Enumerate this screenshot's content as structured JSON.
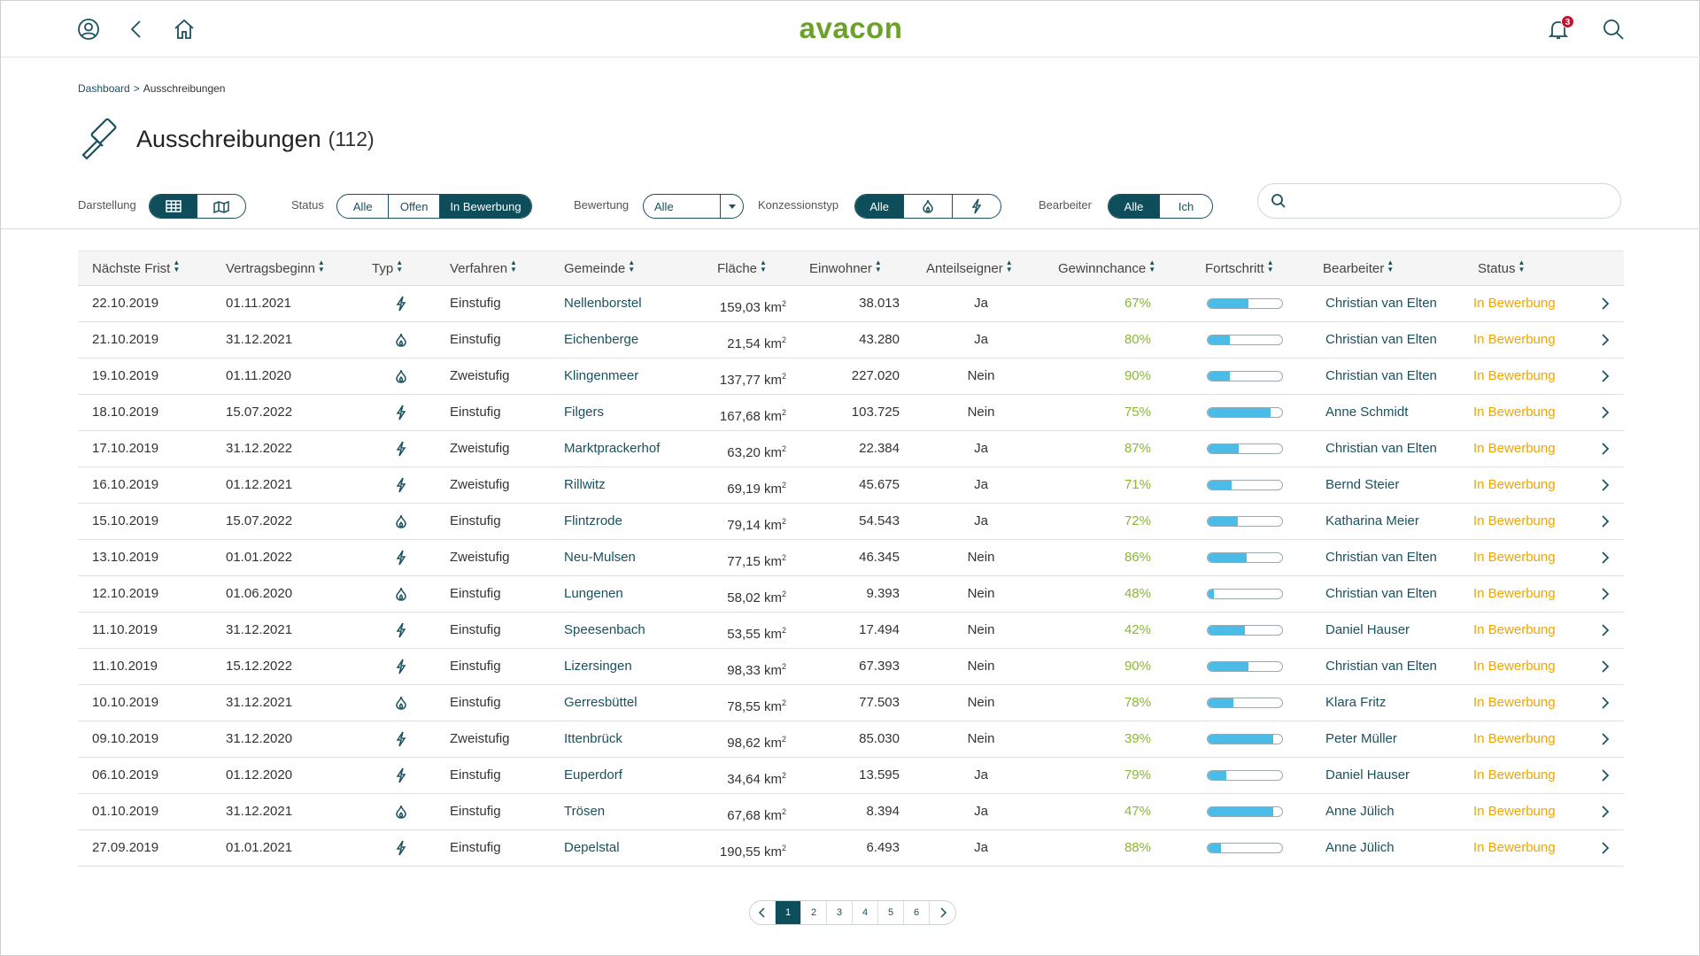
{
  "app": {
    "brand": "avacon",
    "notifications_count": "3"
  },
  "breadcrumb": {
    "parent": "Dashboard",
    "separator": ">",
    "current": "Ausschreibungen"
  },
  "page": {
    "title": "Ausschreibungen",
    "count": "(112)"
  },
  "filters": {
    "darstellung_label": "Darstellung",
    "status_label": "Status",
    "status_options": [
      "Alle",
      "Offen",
      "In Bewerbung"
    ],
    "status_selected": "In Bewerbung",
    "bewertung_label": "Bewertung",
    "bewertung_value": "Alle",
    "konzession_label": "Konzessionstyp",
    "konzession_all": "Alle",
    "bearbeiter_label": "Bearbeiter",
    "bearbeiter_options": [
      "Alle",
      "Ich"
    ],
    "bearbeiter_selected": "Alle",
    "search_placeholder": ""
  },
  "table": {
    "columns": [
      "Nächste Frist",
      "Vertragsbeginn",
      "Typ",
      "Verfahren",
      "Gemeinde",
      "Fläche",
      "Einwohner",
      "Anteilseigner",
      "Gewinnchance",
      "Fortschritt",
      "Bearbeiter",
      "Status"
    ],
    "area_unit": "km",
    "rows": [
      {
        "frist": "22.10.2019",
        "beginn": "01.11.2021",
        "typ": "strom",
        "verfahren": "Einstufig",
        "gemeinde": "Nellenborstel",
        "flaeche": "159,03",
        "einwohner": "38.013",
        "anteil": "Ja",
        "chance": "67%",
        "progress": 0.55,
        "bearbeiter": "Christian van Elten",
        "status": "In Bewerbung"
      },
      {
        "frist": "21.10.2019",
        "beginn": "31.12.2021",
        "typ": "gas",
        "verfahren": "Einstufig",
        "gemeinde": "Eichenberge",
        "flaeche": "21,54",
        "einwohner": "43.280",
        "anteil": "Ja",
        "chance": "80%",
        "progress": 0.3,
        "bearbeiter": "Christian van Elten",
        "status": "In Bewerbung"
      },
      {
        "frist": "19.10.2019",
        "beginn": "01.11.2020",
        "typ": "gas",
        "verfahren": "Zweistufig",
        "gemeinde": "Klingenmeer",
        "flaeche": "137,77",
        "einwohner": "227.020",
        "anteil": "Nein",
        "chance": "90%",
        "progress": 0.3,
        "bearbeiter": "Christian van Elten",
        "status": "In Bewerbung"
      },
      {
        "frist": "18.10.2019",
        "beginn": "15.07.2022",
        "typ": "strom",
        "verfahren": "Einstufig",
        "gemeinde": "Filgers",
        "flaeche": "167,68",
        "einwohner": "103.725",
        "anteil": "Nein",
        "chance": "75%",
        "progress": 0.85,
        "bearbeiter": "Anne Schmidt",
        "status": "In Bewerbung"
      },
      {
        "frist": "17.10.2019",
        "beginn": "31.12.2022",
        "typ": "strom",
        "verfahren": "Zweistufig",
        "gemeinde": "Marktprackerhof",
        "flaeche": "63,20",
        "einwohner": "22.384",
        "anteil": "Ja",
        "chance": "87%",
        "progress": 0.42,
        "bearbeiter": "Christian van Elten",
        "status": "In Bewerbung"
      },
      {
        "frist": "16.10.2019",
        "beginn": "01.12.2021",
        "typ": "strom",
        "verfahren": "Zweistufig",
        "gemeinde": "Rillwitz",
        "flaeche": "69,19",
        "einwohner": "45.675",
        "anteil": "Ja",
        "chance": "71%",
        "progress": 0.32,
        "bearbeiter": "Bernd Steier",
        "status": "In Bewerbung"
      },
      {
        "frist": "15.10.2019",
        "beginn": "15.07.2022",
        "typ": "gas",
        "verfahren": "Einstufig",
        "gemeinde": "Flintzrode",
        "flaeche": "79,14",
        "einwohner": "54.543",
        "anteil": "Ja",
        "chance": "72%",
        "progress": 0.4,
        "bearbeiter": "Katharina Meier",
        "status": "In Bewerbung"
      },
      {
        "frist": "13.10.2019",
        "beginn": "01.01.2022",
        "typ": "strom",
        "verfahren": "Zweistufig",
        "gemeinde": "Neu-Mulsen",
        "flaeche": "77,15",
        "einwohner": "46.345",
        "anteil": "Nein",
        "chance": "86%",
        "progress": 0.52,
        "bearbeiter": "Christian van Elten",
        "status": "In Bewerbung"
      },
      {
        "frist": "12.10.2019",
        "beginn": "01.06.2020",
        "typ": "gas",
        "verfahren": "Einstufig",
        "gemeinde": "Lungenen",
        "flaeche": "58,02",
        "einwohner": "9.393",
        "anteil": "Nein",
        "chance": "48%",
        "progress": 0.08,
        "bearbeiter": "Christian van Elten",
        "status": "In Bewerbung"
      },
      {
        "frist": "11.10.2019",
        "beginn": "31.12.2021",
        "typ": "strom",
        "verfahren": "Einstufig",
        "gemeinde": "Speesenbach",
        "flaeche": "53,55",
        "einwohner": "17.494",
        "anteil": "Nein",
        "chance": "42%",
        "progress": 0.5,
        "bearbeiter": "Daniel Hauser",
        "status": "In Bewerbung"
      },
      {
        "frist": "11.10.2019",
        "beginn": "15.12.2022",
        "typ": "strom",
        "verfahren": "Einstufig",
        "gemeinde": "Lizersingen",
        "flaeche": "98,33",
        "einwohner": "67.393",
        "anteil": "Nein",
        "chance": "90%",
        "progress": 0.55,
        "bearbeiter": "Christian van Elten",
        "status": "In Bewerbung"
      },
      {
        "frist": "10.10.2019",
        "beginn": "31.12.2021",
        "typ": "gas",
        "verfahren": "Einstufig",
        "gemeinde": "Gerresbüttel",
        "flaeche": "78,55",
        "einwohner": "77.503",
        "anteil": "Nein",
        "chance": "78%",
        "progress": 0.35,
        "bearbeiter": "Klara Fritz",
        "status": "In Bewerbung"
      },
      {
        "frist": "09.10.2019",
        "beginn": "31.12.2020",
        "typ": "strom",
        "verfahren": "Zweistufig",
        "gemeinde": "Ittenbrück",
        "flaeche": "98,62",
        "einwohner": "85.030",
        "anteil": "Nein",
        "chance": "39%",
        "progress": 0.88,
        "bearbeiter": "Peter Müller",
        "status": "In Bewerbung"
      },
      {
        "frist": "06.10.2019",
        "beginn": "01.12.2020",
        "typ": "strom",
        "verfahren": "Einstufig",
        "gemeinde": "Euperdorf",
        "flaeche": "34,64",
        "einwohner": "13.595",
        "anteil": "Ja",
        "chance": "79%",
        "progress": 0.25,
        "bearbeiter": "Daniel Hauser",
        "status": "In Bewerbung"
      },
      {
        "frist": "01.10.2019",
        "beginn": "31.12.2021",
        "typ": "gas",
        "verfahren": "Einstufig",
        "gemeinde": "Trösen",
        "flaeche": "67,68",
        "einwohner": "8.394",
        "anteil": "Ja",
        "chance": "47%",
        "progress": 0.88,
        "bearbeiter": "Anne Jülich",
        "status": "In Bewerbung"
      },
      {
        "frist": "27.09.2019",
        "beginn": "01.01.2021",
        "typ": "strom",
        "verfahren": "Einstufig",
        "gemeinde": "Depelstal",
        "flaeche": "190,55",
        "einwohner": "6.493",
        "anteil": "Ja",
        "chance": "88%",
        "progress": 0.18,
        "bearbeiter": "Anne Jülich",
        "status": "In Bewerbung"
      }
    ]
  },
  "pagination": {
    "pages": [
      "1",
      "2",
      "3",
      "4",
      "5",
      "6"
    ],
    "current": "1"
  },
  "colors": {
    "primary": "#0e4d5a",
    "brand_green": "#6ca22b",
    "chance_green": "#8ab82f",
    "status_orange": "#f0a500",
    "progress_blue": "#4bbce8",
    "badge_red": "#c8102e"
  },
  "icons": {
    "typ_strom": "lightning-icon",
    "typ_gas": "flame-icon"
  }
}
